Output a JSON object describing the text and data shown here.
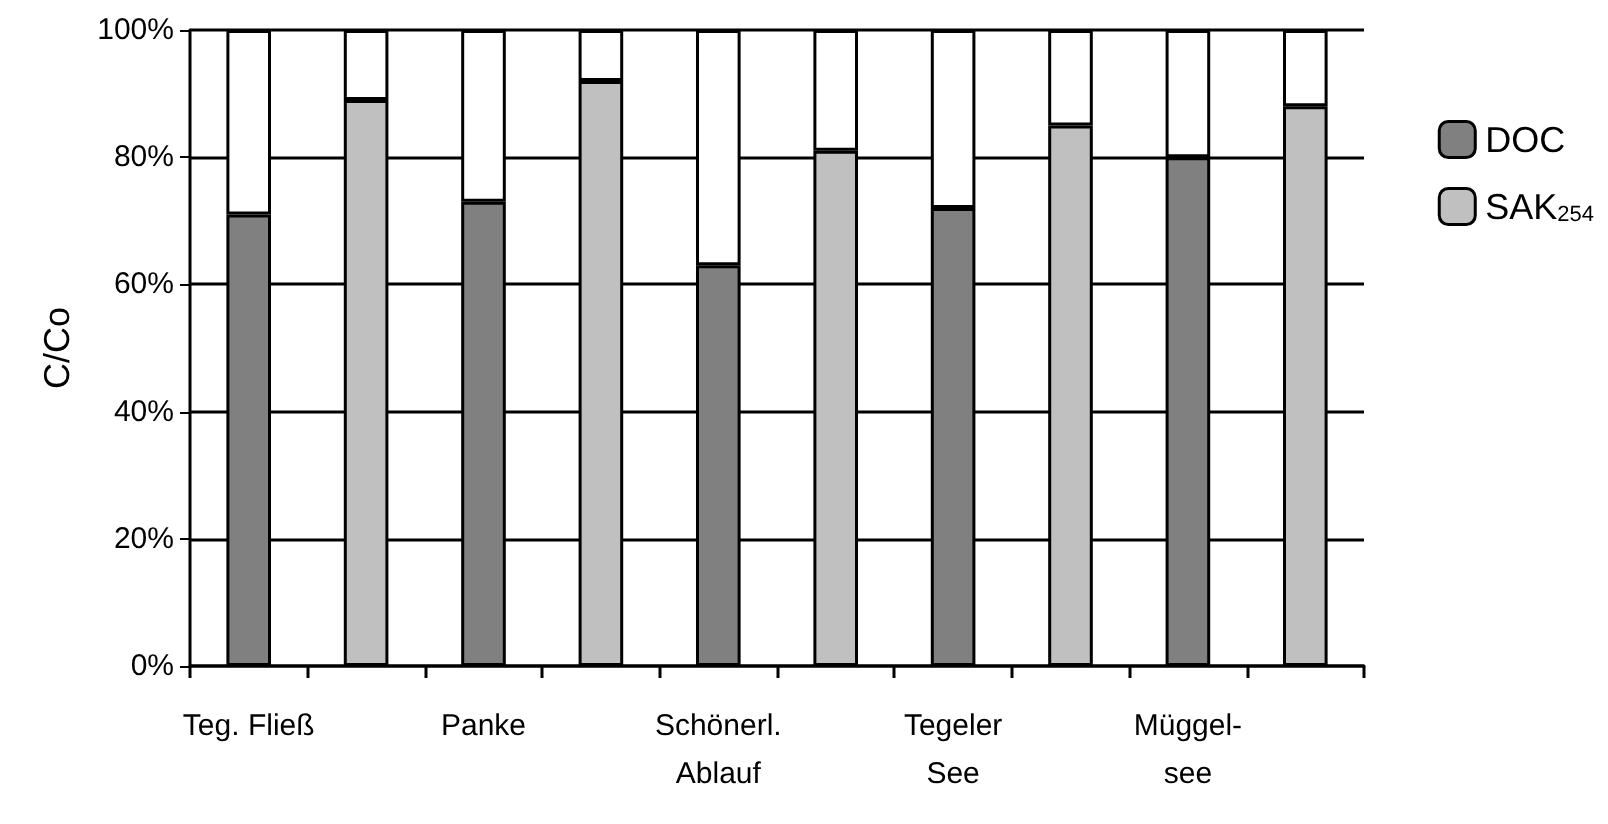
{
  "chart_data": {
    "type": "bar",
    "stacked": true,
    "ylabel": "C/Co",
    "categories": [
      "Teg. Fließ",
      null,
      "Panke",
      null,
      "Schönerl.\nAblauf",
      null,
      "Tegeler\nSee",
      null,
      "Müggel-\nsee",
      null
    ],
    "series": [
      {
        "name": "DOC",
        "color": "#808080",
        "values": [
          71,
          null,
          73,
          null,
          63,
          null,
          72,
          null,
          80,
          null
        ]
      },
      {
        "name": "SAK$_{254}$",
        "color": "#c0c0c0",
        "values": [
          null,
          89,
          null,
          92,
          null,
          81,
          null,
          85,
          null,
          88
        ]
      },
      {
        "color": "#ffffff",
        "values": [
          29,
          11,
          27,
          8,
          37,
          19,
          28,
          15,
          20,
          12
        ]
      }
    ],
    "ylim": [
      0,
      100
    ],
    "yticks": [
      {
        "value": 0,
        "label": "0%"
      },
      {
        "value": 20,
        "label": "20%"
      },
      {
        "value": 40,
        "label": "40%"
      },
      {
        "value": 60,
        "label": "60%"
      },
      {
        "value": 80,
        "label": "80%"
      },
      {
        "value": 100,
        "label": "100%"
      }
    ],
    "grid": "y",
    "legend": "right"
  }
}
